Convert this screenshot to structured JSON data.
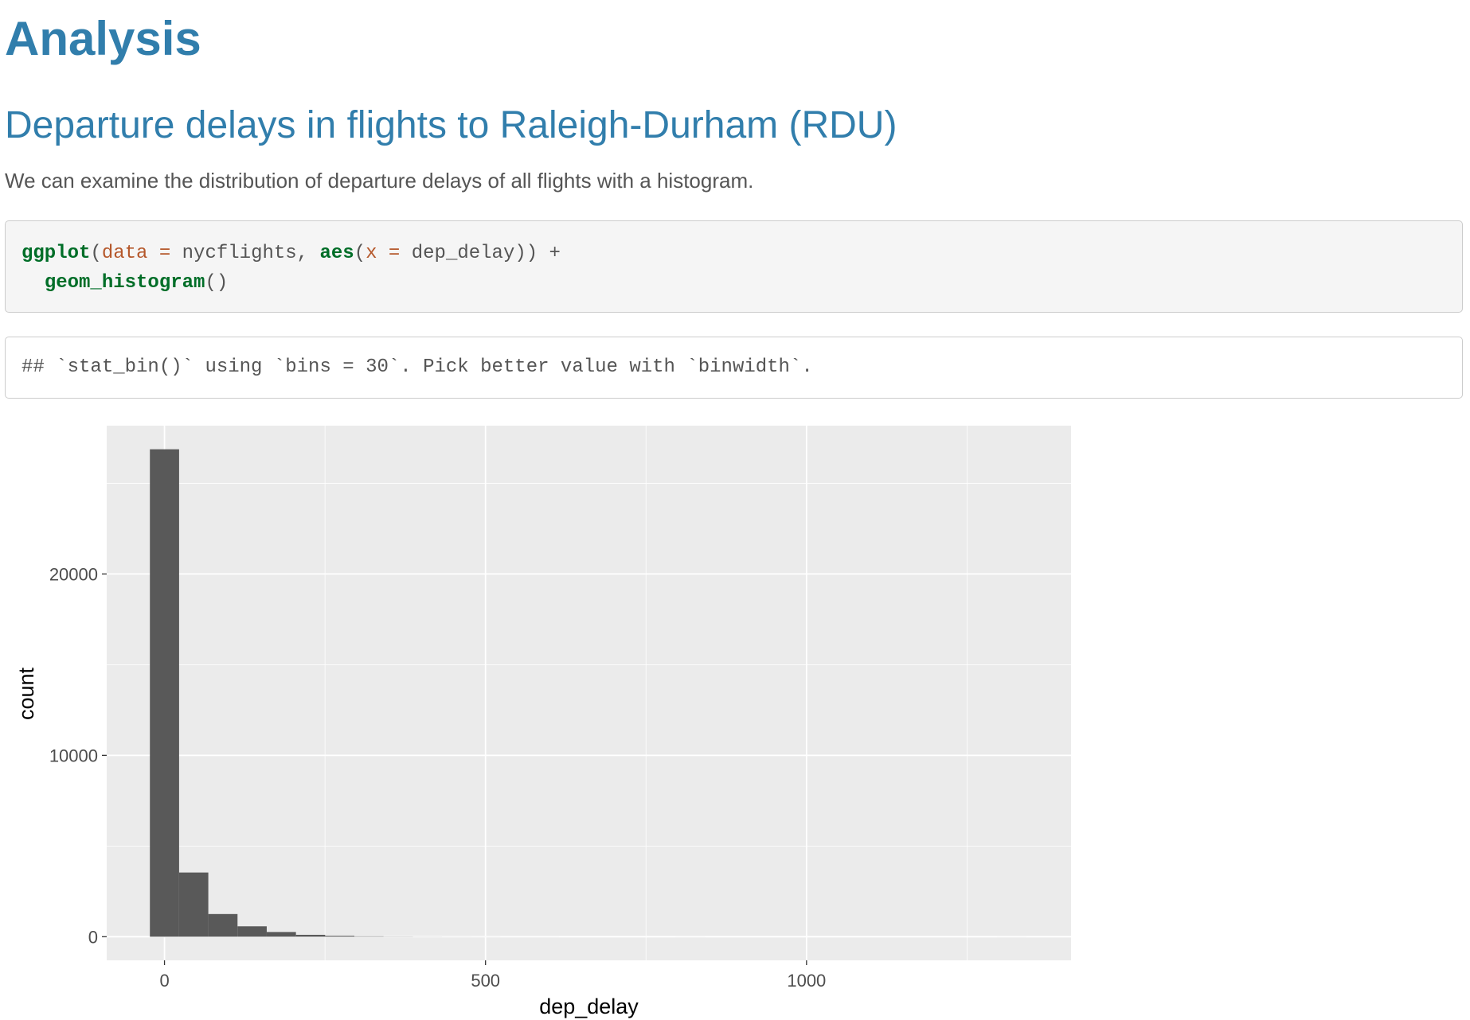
{
  "header": {
    "title": "Analysis"
  },
  "section": {
    "title": "Departure delays in flights to Raleigh-Durham (RDU)",
    "text": "We can examine the distribution of departure delays of all flights with a histogram."
  },
  "code": {
    "lines": [
      [
        {
          "text": "ggplot",
          "kind": "fn"
        },
        {
          "text": "(",
          "kind": "plain"
        },
        {
          "text": "data =",
          "kind": "arg"
        },
        {
          "text": " nycflights, ",
          "kind": "plain"
        },
        {
          "text": "aes",
          "kind": "fn"
        },
        {
          "text": "(",
          "kind": "plain"
        },
        {
          "text": "x =",
          "kind": "arg"
        },
        {
          "text": " dep_delay)) +",
          "kind": "plain"
        }
      ],
      [
        {
          "text": "  ",
          "kind": "plain"
        },
        {
          "text": "geom_histogram",
          "kind": "fn"
        },
        {
          "text": "()",
          "kind": "plain"
        }
      ]
    ]
  },
  "output": {
    "text": "## `stat_bin()` using `bins = 30`. Pick better value with `binwidth`."
  },
  "chart_data": {
    "type": "histogram",
    "x_label": "dep_delay",
    "y_label": "count",
    "bins": [
      -22.75,
      22.75,
      68.25,
      113.75,
      159.25,
      204.75,
      250.25,
      295.75,
      341.25,
      386.75,
      432.25,
      477.75,
      523.25,
      568.75,
      614.25,
      659.75,
      705.25,
      750.75,
      796.25,
      841.75,
      887.25,
      932.75,
      978.25,
      1023.75,
      1069.25,
      1114.75,
      1160.25,
      1205.75,
      1251.25,
      1296.75,
      1342.25
    ],
    "counts": [
      26875,
      3540,
      1250,
      573,
      260,
      104,
      50,
      20,
      10,
      5,
      3,
      2,
      1,
      1,
      0,
      0,
      0,
      0,
      1,
      0,
      0,
      0,
      0,
      0,
      0,
      0,
      0,
      0,
      0,
      1
    ],
    "color": "#595959",
    "xlim": [
      -90,
      1412
    ],
    "ylim": [
      -1302,
      28177
    ],
    "xticks": [
      0,
      500,
      1000
    ],
    "yticks": [
      0,
      10000,
      20000
    ],
    "x_minor_grid": [
      250,
      750,
      1250
    ],
    "y_minor_grid": [
      5000,
      15000,
      25000
    ],
    "panel_color": "#ebebeb",
    "grid": true
  }
}
